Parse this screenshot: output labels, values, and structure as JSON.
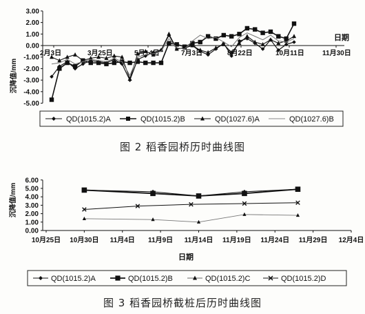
{
  "figures": [
    {
      "caption": "图 2   稻香园桥历时曲线图",
      "legend": [
        {
          "label": "QD(1015.2)A",
          "marker": "diamond"
        },
        {
          "label": "QD(1015.2)B",
          "marker": "square"
        },
        {
          "label": "QD(1027.6)A",
          "marker": "triangle"
        },
        {
          "label": "QD(1027.6)B",
          "marker": "none"
        }
      ]
    },
    {
      "caption": "图 3   稻香园桥截桩后历时曲线图",
      "legend": [
        {
          "label": "QD(1015.2)A",
          "marker": "diamond"
        },
        {
          "label": "QD(1015.2)B",
          "marker": "square"
        },
        {
          "label": "QD(1015.2)C",
          "marker": "triangle"
        },
        {
          "label": "QD(1015.2)D",
          "marker": "x"
        }
      ]
    }
  ],
  "chart_data": [
    {
      "type": "line",
      "ylabel": "沉降值/mm",
      "xlabel": "日期",
      "ylim": [
        -5,
        3
      ],
      "yticks": [
        "3.00",
        "2.00",
        "1.00",
        "0.00",
        "-1.00",
        "-2.00",
        "-3.00",
        "-4.00",
        "-5.00"
      ],
      "xticks": [
        "2月3日",
        "3月25日",
        "5月14日",
        "7月3日",
        "8月22日",
        "10月11日",
        "11月30日"
      ],
      "grid": false,
      "legend_position": "bottom",
      "series": [
        {
          "name": "QD(1015.2)A",
          "marker": "diamond",
          "x": [
            0,
            1,
            2,
            3,
            4,
            5,
            6,
            7,
            8,
            9,
            10,
            11,
            12,
            13,
            14,
            15,
            16,
            17,
            18,
            19,
            20,
            21,
            22,
            23,
            24,
            25,
            26,
            27,
            28,
            29,
            30,
            31
          ],
          "values": [
            -2.7,
            -1.8,
            -1.4,
            -2.0,
            -1.6,
            -1.3,
            -1.4,
            -1.5,
            -1.2,
            -1.6,
            -3.0,
            -1.2,
            -0.9,
            -0.6,
            -0.4,
            0.9,
            -0.3,
            -0.2,
            0.0,
            -0.5,
            -0.8,
            -0.3,
            0.2,
            -0.9,
            0.4,
            0.6,
            0.2,
            -0.3,
            0.5,
            -0.4,
            0.1,
            0.3
          ]
        },
        {
          "name": "QD(1015.2)B",
          "marker": "square",
          "x": [
            0,
            1,
            2,
            3,
            4,
            5,
            6,
            7,
            8,
            9,
            10,
            11,
            12,
            13,
            14,
            15,
            16,
            17,
            18,
            19,
            20,
            21,
            22,
            23,
            24,
            25,
            26,
            27,
            28,
            29,
            30,
            31
          ],
          "values": [
            -4.7,
            -2.0,
            -1.5,
            -1.8,
            -1.3,
            -1.5,
            -1.5,
            -1.6,
            -1.5,
            -1.4,
            -1.5,
            -1.4,
            -1.5,
            -1.5,
            -1.5,
            0.2,
            0.1,
            -0.1,
            0.2,
            0.3,
            0.8,
            0.6,
            0.9,
            0.8,
            1.0,
            1.5,
            1.4,
            1.1,
            1.2,
            0.8,
            0.6,
            1.9
          ]
        },
        {
          "name": "QD(1027.6)A",
          "marker": "triangle",
          "x": [
            0,
            1,
            2,
            3,
            4,
            5,
            6,
            7,
            8,
            9,
            10,
            11,
            12,
            13,
            14,
            15,
            16,
            17,
            18,
            19,
            20,
            21,
            22,
            23,
            24,
            25,
            26,
            27,
            28,
            29,
            30,
            31
          ],
          "values": [
            -1.0,
            -1.3,
            -1.0,
            -0.8,
            -1.3,
            -1.1,
            -1.0,
            -1.1,
            -0.9,
            -1.0,
            -2.9,
            -0.7,
            -0.5,
            -0.8,
            -0.4,
            1.0,
            -0.3,
            -0.2,
            0.0,
            -0.4,
            -0.6,
            -0.2,
            0.1,
            -0.6,
            0.2,
            0.8,
            0.3,
            0.1,
            0.5,
            0.2,
            0.4,
            0.8
          ]
        },
        {
          "name": "QD(1027.6)B",
          "marker": "none",
          "x": [
            0,
            1,
            2,
            3,
            4,
            5,
            6,
            7,
            8,
            9,
            10,
            11,
            12,
            13,
            14,
            15,
            16,
            17,
            18,
            19,
            20,
            21,
            22,
            23,
            24,
            25,
            26,
            27,
            28,
            29,
            30,
            31
          ],
          "values": [
            -1.6,
            -1.5,
            -1.2,
            -1.6,
            -1.4,
            -1.2,
            -1.3,
            -1.4,
            -1.1,
            -1.4,
            -2.6,
            -1.0,
            -0.8,
            -0.7,
            -0.5,
            0.6,
            -0.2,
            -0.3,
            0.4,
            0.9,
            0.6,
            0.7,
            0.3,
            -0.1,
            0.7,
            1.1,
            0.8,
            0.5,
            0.9,
            0.4,
            0.3,
            0.6
          ]
        }
      ]
    },
    {
      "type": "line",
      "ylabel": "沉降值/mm",
      "xlabel": "日期",
      "ylim": [
        0,
        6
      ],
      "yticks": [
        "6.00",
        "5.00",
        "4.00",
        "3.00",
        "2.00",
        "1.00",
        "0.00"
      ],
      "xticks": [
        "10月25日",
        "10月30日",
        "11月4日",
        "11月9日",
        "11月14日",
        "11月19日",
        "11月24日",
        "11月29日",
        "12月4日"
      ],
      "grid": false,
      "legend_position": "bottom",
      "series": [
        {
          "name": "QD(1015.2)A",
          "marker": "diamond",
          "x": [
            5,
            14,
            20,
            26,
            33
          ],
          "values": [
            4.8,
            4.6,
            4.1,
            4.6,
            4.9
          ]
        },
        {
          "name": "QD(1015.2)B",
          "marker": "square",
          "x": [
            5,
            14,
            20,
            26,
            33
          ],
          "values": [
            4.8,
            4.4,
            4.1,
            4.4,
            4.9
          ]
        },
        {
          "name": "QD(1015.2)C",
          "marker": "triangle",
          "x": [
            5,
            14,
            20,
            26,
            33
          ],
          "values": [
            1.4,
            1.3,
            1.0,
            1.9,
            1.8
          ]
        },
        {
          "name": "QD(1015.2)D",
          "marker": "x",
          "x": [
            5,
            12,
            19,
            26,
            33
          ],
          "values": [
            2.5,
            2.9,
            3.1,
            3.2,
            3.3
          ]
        }
      ]
    }
  ]
}
